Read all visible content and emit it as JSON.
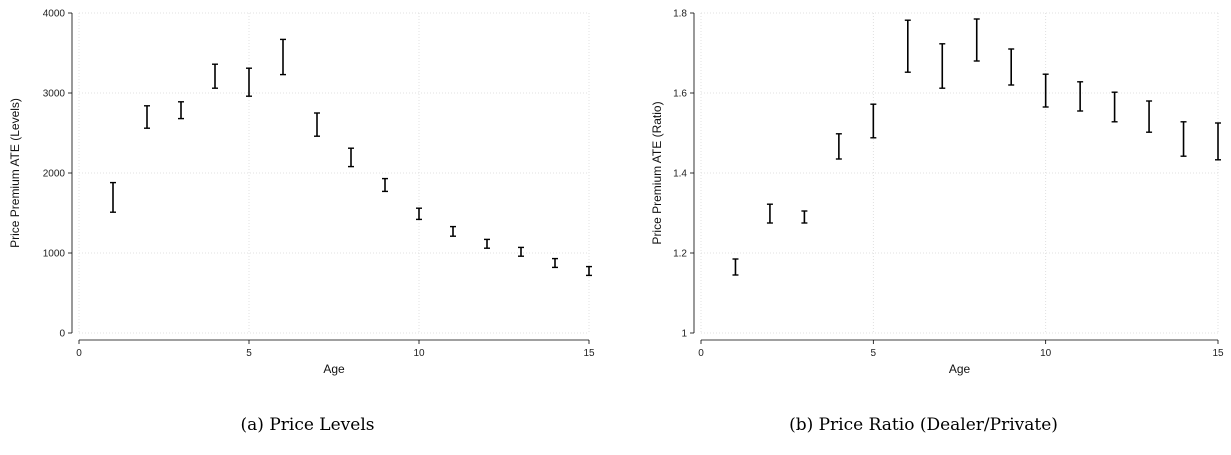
{
  "chart_data": [
    {
      "type": "errorbar",
      "caption": "(a) Price Levels",
      "xlabel": "Age",
      "ylabel": "Price Premium ATE (Levels)",
      "xlim": [
        0,
        15
      ],
      "ylim": [
        0,
        4000
      ],
      "xticks": [
        0,
        5,
        10,
        15
      ],
      "yticks": [
        0,
        1000,
        2000,
        3000,
        4000
      ],
      "grid": true,
      "points": [
        {
          "x": 1,
          "low": 1510,
          "high": 1880
        },
        {
          "x": 2,
          "low": 2560,
          "high": 2840
        },
        {
          "x": 3,
          "low": 2680,
          "high": 2890
        },
        {
          "x": 4,
          "low": 3060,
          "high": 3360
        },
        {
          "x": 5,
          "low": 2960,
          "high": 3310
        },
        {
          "x": 6,
          "low": 3230,
          "high": 3670
        },
        {
          "x": 7,
          "low": 2460,
          "high": 2750
        },
        {
          "x": 8,
          "low": 2080,
          "high": 2310
        },
        {
          "x": 9,
          "low": 1770,
          "high": 1930
        },
        {
          "x": 10,
          "low": 1420,
          "high": 1560
        },
        {
          "x": 11,
          "low": 1210,
          "high": 1330
        },
        {
          "x": 12,
          "low": 1060,
          "high": 1170
        },
        {
          "x": 13,
          "low": 960,
          "high": 1070
        },
        {
          "x": 14,
          "low": 820,
          "high": 930
        },
        {
          "x": 15,
          "low": 720,
          "high": 830
        }
      ]
    },
    {
      "type": "errorbar",
      "caption": "(b) Price Ratio (Dealer/Private)",
      "xlabel": "Age",
      "ylabel": "Price Premium ATE (Ratio)",
      "xlim": [
        0,
        15
      ],
      "ylim": [
        1,
        1.8
      ],
      "xticks": [
        0,
        5,
        10,
        15
      ],
      "yticks": [
        1,
        1.2,
        1.4,
        1.6,
        1.8
      ],
      "grid": true,
      "points": [
        {
          "x": 1,
          "low": 1.145,
          "high": 1.185
        },
        {
          "x": 2,
          "low": 1.275,
          "high": 1.322
        },
        {
          "x": 3,
          "low": 1.275,
          "high": 1.305
        },
        {
          "x": 4,
          "low": 1.435,
          "high": 1.498
        },
        {
          "x": 5,
          "low": 1.488,
          "high": 1.572
        },
        {
          "x": 6,
          "low": 1.652,
          "high": 1.782
        },
        {
          "x": 7,
          "low": 1.612,
          "high": 1.723
        },
        {
          "x": 8,
          "low": 1.68,
          "high": 1.785
        },
        {
          "x": 9,
          "low": 1.62,
          "high": 1.71
        },
        {
          "x": 10,
          "low": 1.565,
          "high": 1.647
        },
        {
          "x": 11,
          "low": 1.555,
          "high": 1.628
        },
        {
          "x": 12,
          "low": 1.528,
          "high": 1.602
        },
        {
          "x": 13,
          "low": 1.502,
          "high": 1.58
        },
        {
          "x": 14,
          "low": 1.442,
          "high": 1.528
        },
        {
          "x": 15,
          "low": 1.433,
          "high": 1.525
        }
      ]
    }
  ]
}
